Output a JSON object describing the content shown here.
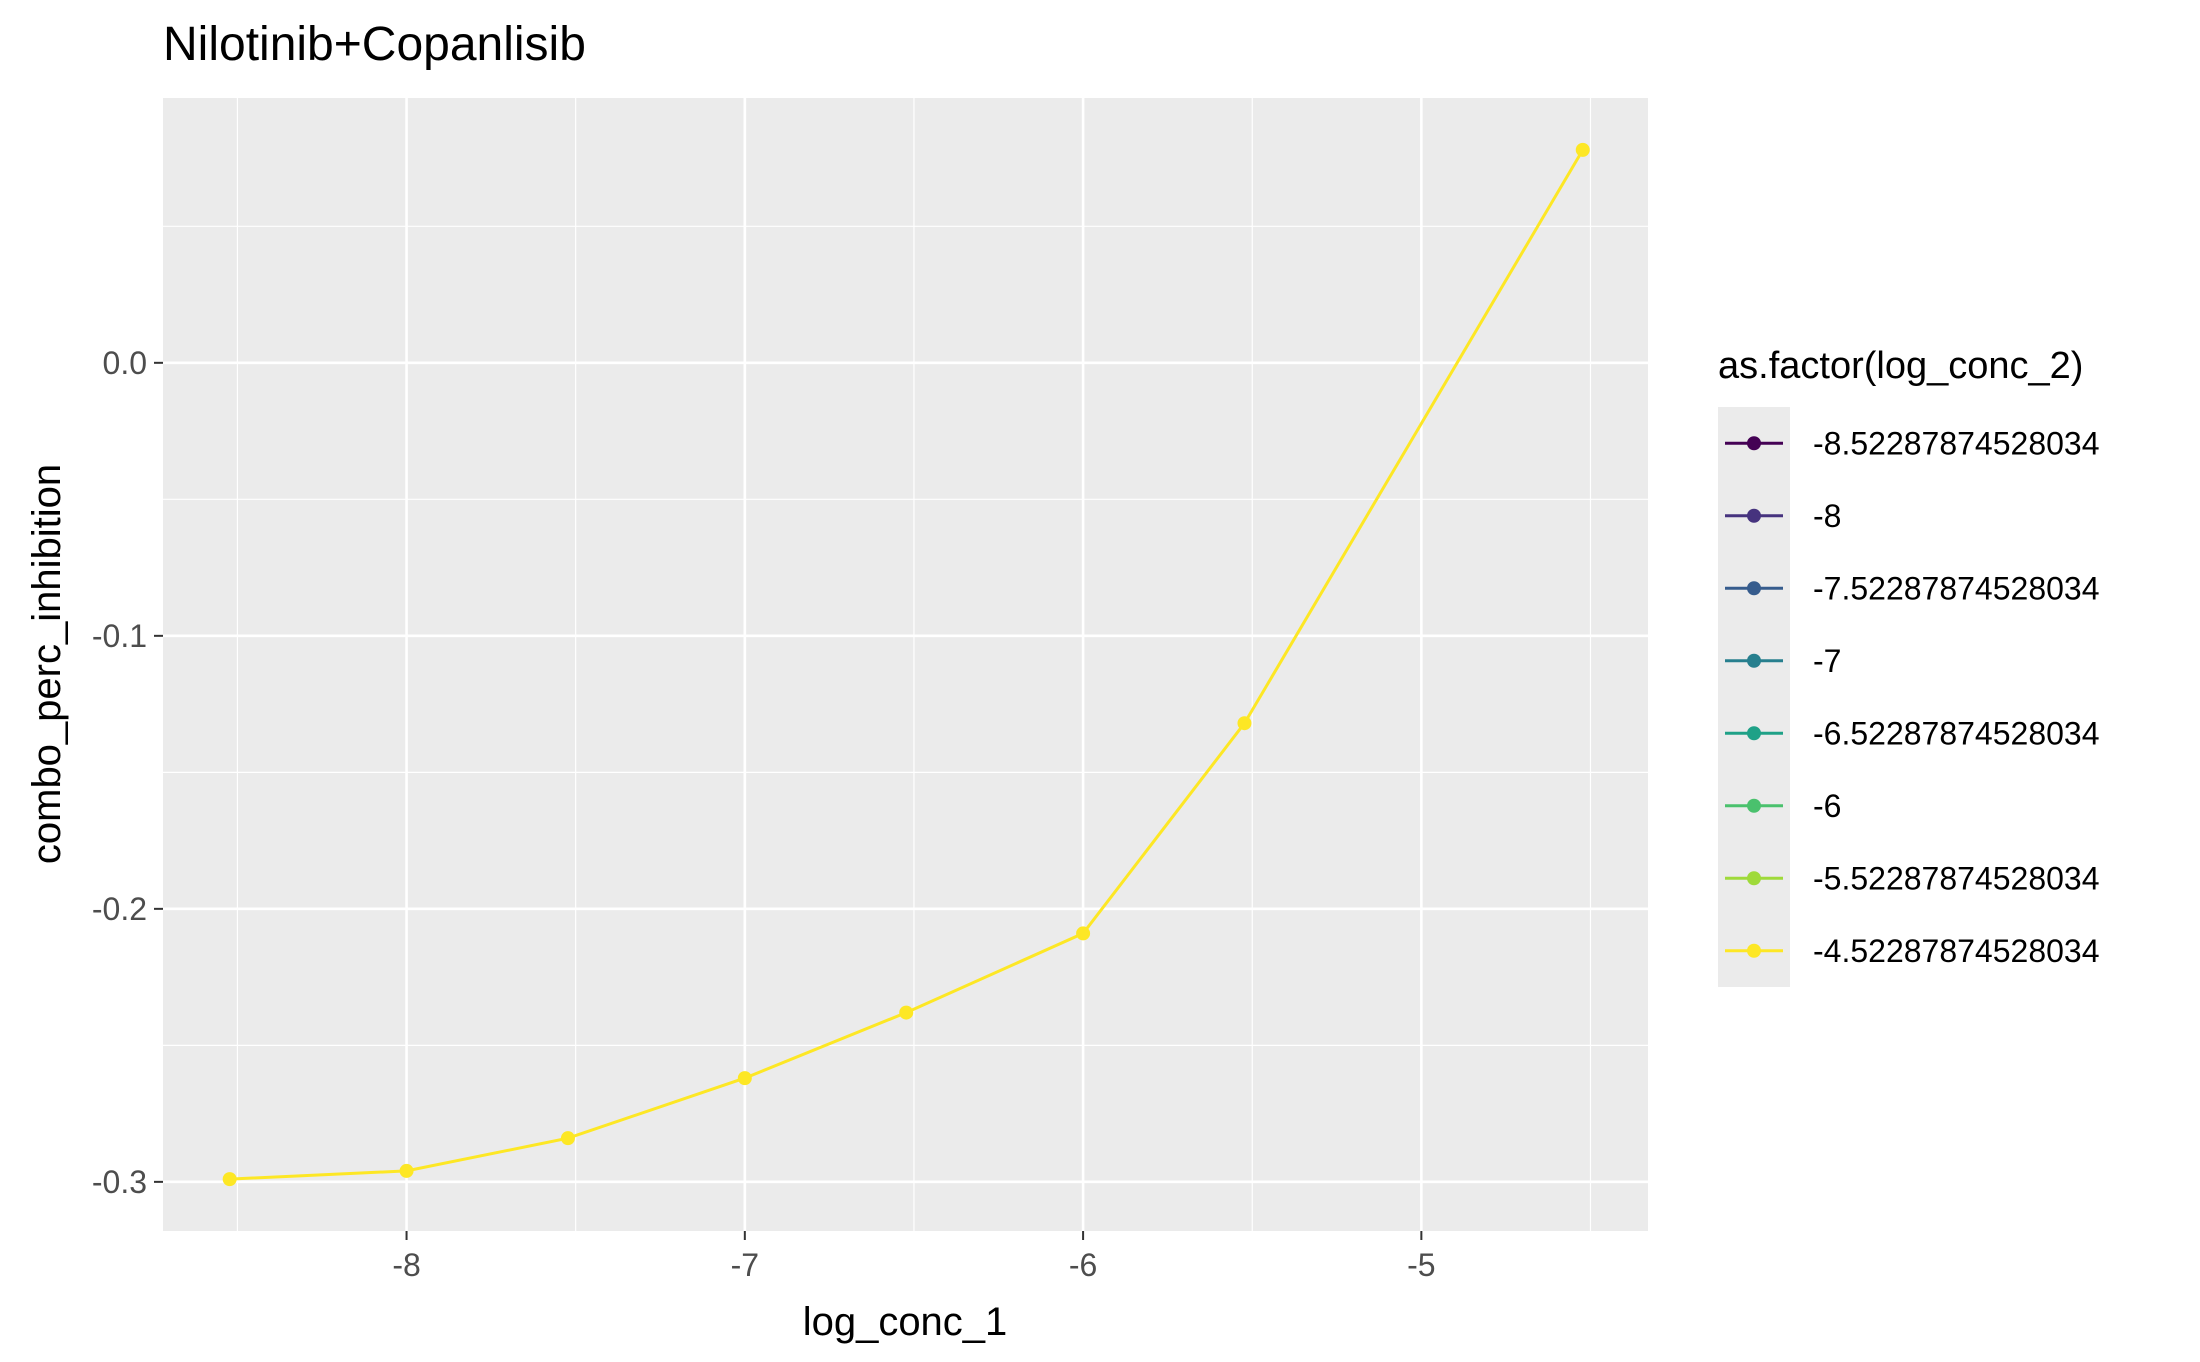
{
  "chart_data": {
    "type": "line",
    "title": "Nilotinib+Copanlisib",
    "xlabel": "log_conc_1",
    "ylabel": "combo_perc_inhibition",
    "xlim": [
      -8.72,
      -4.33
    ],
    "ylim": [
      -0.318,
      0.097
    ],
    "x_ticks": [
      -8,
      -7,
      -6,
      -5
    ],
    "x_tick_labels": [
      "-8",
      "-7",
      "-6",
      "-5"
    ],
    "y_ticks": [
      -0.3,
      -0.2,
      -0.1,
      0.0
    ],
    "y_tick_labels": [
      "-0.3",
      "-0.2",
      "-0.1",
      "0.0"
    ],
    "grid": true,
    "legend_position": "right",
    "legend_title": "as.factor(log_conc_2)",
    "legend_items": [
      {
        "label": "-8.52287874528034",
        "color": "#440154"
      },
      {
        "label": "-8",
        "color": "#46337E"
      },
      {
        "label": "-7.52287874528034",
        "color": "#365C8D"
      },
      {
        "label": "-7",
        "color": "#277F8E"
      },
      {
        "label": "-6.52287874528034",
        "color": "#1FA187"
      },
      {
        "label": "-6",
        "color": "#4AC16D"
      },
      {
        "label": "-5.52287874528034",
        "color": "#9FDA3A"
      },
      {
        "label": "-4.52287874528034",
        "color": "#FDE725"
      }
    ],
    "series": [
      {
        "name": "-4.52287874528034",
        "color": "#FDE725",
        "x": [
          -8.52287874528034,
          -8,
          -7.52287874528034,
          -7,
          -6.52287874528034,
          -6,
          -5.52287874528034,
          -4.52287874528034
        ],
        "y": [
          -0.299,
          -0.296,
          -0.284,
          -0.262,
          -0.238,
          -0.209,
          -0.132,
          0.078
        ]
      }
    ]
  }
}
